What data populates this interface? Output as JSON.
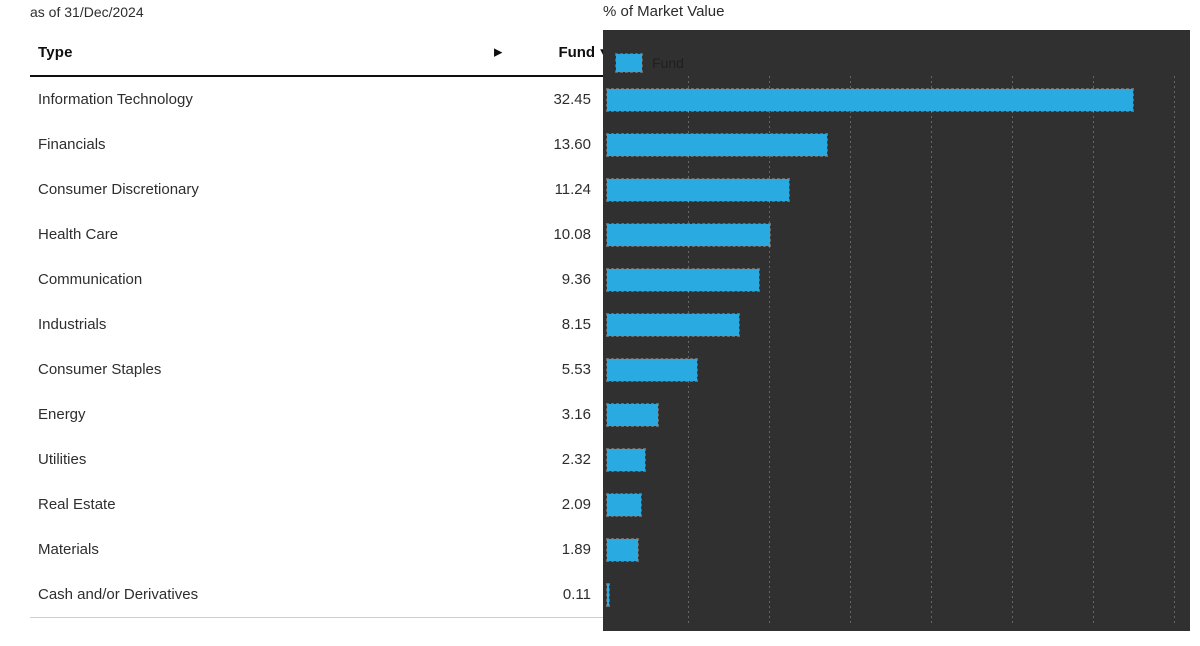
{
  "meta": {
    "as_of_label": "as of 31/Dec/2024"
  },
  "table": {
    "columns": {
      "type": "Type",
      "fund": "Fund"
    },
    "sort_icon": "▼",
    "expand_icon": "▶",
    "rows": [
      {
        "type": "Information Technology",
        "fund": "32.45"
      },
      {
        "type": "Financials",
        "fund": "13.60"
      },
      {
        "type": "Consumer Discretionary",
        "fund": "11.24"
      },
      {
        "type": "Health Care",
        "fund": "10.08"
      },
      {
        "type": "Communication",
        "fund": "9.36"
      },
      {
        "type": "Industrials",
        "fund": "8.15"
      },
      {
        "type": "Consumer Staples",
        "fund": "5.53"
      },
      {
        "type": "Energy",
        "fund": "3.16"
      },
      {
        "type": "Utilities",
        "fund": "2.32"
      },
      {
        "type": "Real Estate",
        "fund": "2.09"
      },
      {
        "type": "Materials",
        "fund": "1.89"
      },
      {
        "type": "Cash and/or Derivatives",
        "fund": "0.11"
      }
    ]
  },
  "chart": {
    "title": "% of Market Value",
    "legend_label": "Fund",
    "bar_color": "#29abe2",
    "panel_color": "#303030"
  },
  "chart_data": {
    "type": "bar",
    "orientation": "horizontal",
    "title": "% of Market Value",
    "series_name": "Fund",
    "categories": [
      "Information Technology",
      "Financials",
      "Consumer Discretionary",
      "Health Care",
      "Communication",
      "Industrials",
      "Consumer Staples",
      "Energy",
      "Utilities",
      "Real Estate",
      "Materials",
      "Cash and/or Derivatives"
    ],
    "values": [
      32.45,
      13.6,
      11.24,
      10.08,
      9.36,
      8.15,
      5.53,
      3.16,
      2.32,
      2.09,
      1.89,
      0.11
    ],
    "xlim": [
      0,
      36
    ],
    "gridline_ticks": [
      5,
      10,
      15,
      20,
      25,
      30,
      35
    ],
    "grid": true,
    "legend_position": "top-left",
    "bar_color": "#29abe2",
    "background_color": "#303030"
  }
}
